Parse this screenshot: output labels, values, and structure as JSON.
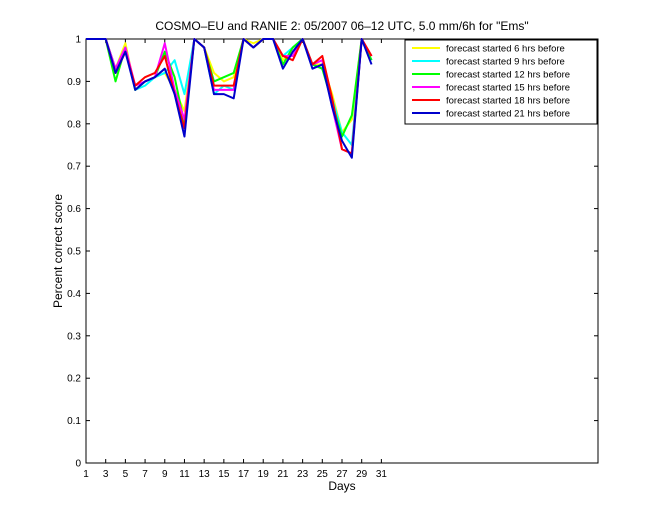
{
  "chart_data": {
    "type": "line",
    "title": "COSMO–EU and RANIE 2: 05/2007 06–12 UTC, 5.0 mm/6h for \"Ems\"",
    "xlabel": "Days",
    "ylabel": "Percent correct score",
    "xlim": [
      1,
      53
    ],
    "ylim": [
      0,
      1
    ],
    "x_ticks": [
      1,
      3,
      5,
      7,
      9,
      11,
      13,
      15,
      17,
      19,
      21,
      23,
      25,
      27,
      29,
      31
    ],
    "y_ticks": [
      0,
      0.1,
      0.2,
      0.3,
      0.4,
      0.5,
      0.6,
      0.7,
      0.8,
      0.9,
      1
    ],
    "y_tick_labels": [
      "0",
      "0.1",
      "0.2",
      "0.3",
      "0.4",
      "0.5",
      "0.6",
      "0.7",
      "0.8",
      "0.9",
      "1"
    ],
    "legend_position": "top-right",
    "grid": false,
    "x": [
      1,
      2,
      3,
      4,
      5,
      6,
      7,
      8,
      9,
      10,
      11,
      12,
      13,
      14,
      15,
      16,
      17,
      18,
      19,
      20,
      21,
      22,
      23,
      24,
      25,
      26,
      27,
      28,
      29,
      30,
      31
    ],
    "series": [
      {
        "name": "forecast started 6 hrs before",
        "color": "#ffff00",
        "values": [
          1,
          1,
          1,
          0.93,
          0.99,
          0.88,
          0.9,
          0.91,
          0.92,
          0.88,
          0.83,
          1,
          0.98,
          0.92,
          0.9,
          0.91,
          1,
          0.99,
          1,
          1,
          0.95,
          0.97,
          1,
          0.94,
          0.94,
          0.87,
          0.78,
          0.81,
          1,
          0.96,
          null
        ]
      },
      {
        "name": "forecast started 9 hrs before",
        "color": "#00ffff",
        "values": [
          1,
          1,
          1,
          0.93,
          0.98,
          0.88,
          0.89,
          0.91,
          0.92,
          0.95,
          0.87,
          1,
          0.98,
          0.87,
          0.89,
          0.88,
          1,
          0.98,
          1,
          1,
          0.96,
          0.98,
          1,
          0.94,
          0.93,
          0.86,
          0.78,
          0.75,
          1,
          0.95,
          null
        ]
      },
      {
        "name": "forecast started 12 hrs before",
        "color": "#00ff00",
        "values": [
          1,
          1,
          1,
          0.9,
          0.98,
          0.88,
          0.9,
          0.91,
          0.97,
          0.91,
          0.8,
          1,
          0.98,
          0.9,
          0.91,
          0.92,
          1,
          0.98,
          1,
          1,
          0.94,
          0.98,
          1,
          0.94,
          0.93,
          0.85,
          0.77,
          0.82,
          1,
          0.95,
          null
        ]
      },
      {
        "name": "forecast started 15 hrs before",
        "color": "#ff00ff",
        "values": [
          1,
          1,
          1,
          0.93,
          0.98,
          0.89,
          0.9,
          0.91,
          0.99,
          0.88,
          0.81,
          1,
          0.98,
          0.88,
          0.88,
          0.88,
          1,
          0.98,
          1,
          1,
          0.96,
          0.96,
          1,
          0.94,
          0.95,
          0.84,
          0.74,
          0.73,
          1,
          0.96,
          null
        ]
      },
      {
        "name": "forecast started 18 hrs before",
        "color": "#ff0000",
        "values": [
          1,
          1,
          1,
          0.92,
          0.97,
          0.89,
          0.91,
          0.92,
          0.96,
          0.87,
          0.79,
          1,
          0.98,
          0.89,
          0.89,
          0.89,
          1,
          0.98,
          1,
          1,
          0.96,
          0.95,
          1,
          0.94,
          0.96,
          0.86,
          0.74,
          0.73,
          1,
          0.96,
          null
        ]
      },
      {
        "name": "forecast started 21 hrs before",
        "color": "#0000cc",
        "values": [
          1,
          1,
          1,
          0.92,
          0.97,
          0.88,
          0.9,
          0.91,
          0.93,
          0.87,
          0.77,
          1,
          0.98,
          0.87,
          0.87,
          0.86,
          1,
          0.98,
          1,
          1,
          0.93,
          0.97,
          1,
          0.93,
          0.94,
          0.84,
          0.76,
          0.72,
          1,
          0.94,
          null
        ]
      }
    ]
  }
}
